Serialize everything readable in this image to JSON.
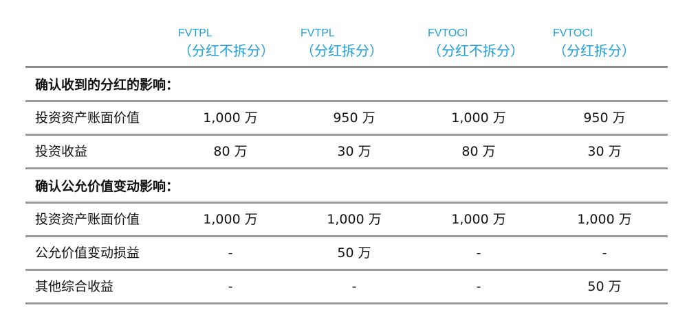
{
  "columns": [
    {
      "code": "FVTPL",
      "sub": "（分红不拆分）"
    },
    {
      "code": "FVTPL",
      "sub": "（分红拆分）"
    },
    {
      "code": "FVTOCI",
      "sub": "（分红不拆分）"
    },
    {
      "code": "FVTOCI",
      "sub": "（分红拆分）"
    }
  ],
  "sections": [
    {
      "title": "确认收到的分红的影响：",
      "rows": [
        {
          "label": "投资资产账面价值",
          "values": [
            "1,000 万",
            "950 万",
            "1,000 万",
            "950 万"
          ]
        },
        {
          "label": "投资收益",
          "values": [
            "80 万",
            "30 万",
            "80 万",
            "30 万"
          ]
        }
      ]
    },
    {
      "title": "确认公允价值变动影响：",
      "rows": [
        {
          "label": "投资资产账面价值",
          "values": [
            "1,000 万",
            "1,000 万",
            "1,000 万",
            "1,000 万"
          ]
        },
        {
          "label": "公允价值变动损益",
          "values": [
            "-",
            "50 万",
            "-",
            "-"
          ]
        },
        {
          "label": "其他综合收益",
          "values": [
            "-",
            "-",
            "-",
            "50 万"
          ]
        }
      ]
    }
  ],
  "colors": {
    "header_text": "#1fa0d8",
    "rule": "#9a9a9a"
  }
}
